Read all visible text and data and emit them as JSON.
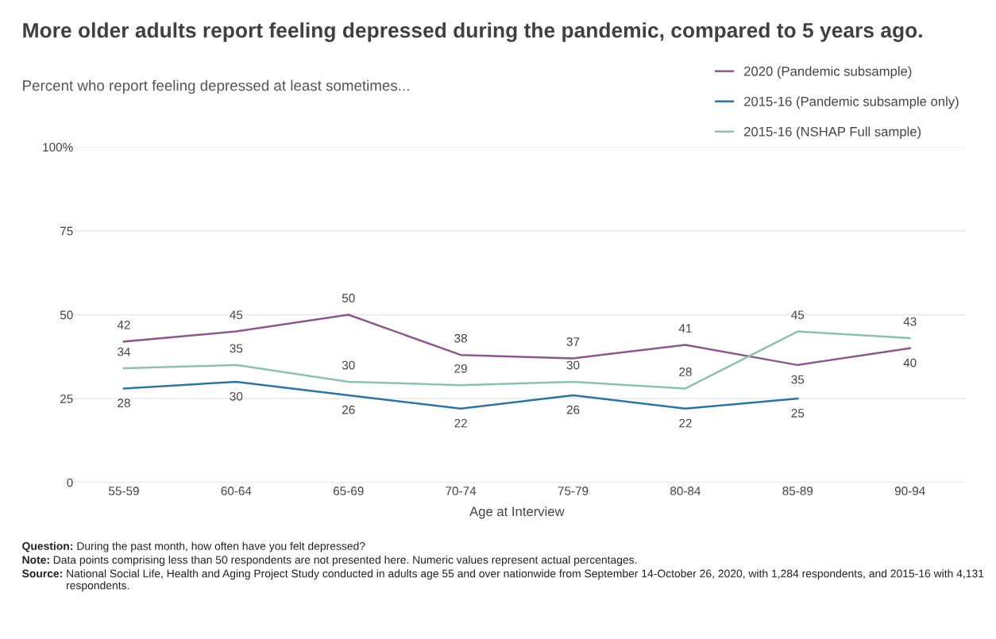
{
  "chart_data": {
    "type": "line",
    "title": "More older adults report feeling depressed during the pandemic, compared to 5 years ago.",
    "subtitle": "Percent who report feeling depressed at least sometimes...",
    "xlabel": "Age at Interview",
    "categories": [
      "55-59",
      "60-64",
      "65-69",
      "70-74",
      "75-79",
      "80-84",
      "85-89",
      "90-94"
    ],
    "series": [
      {
        "name": "2020 (Pandemic subsample)",
        "color": "#8b5a8c",
        "values": [
          42,
          45,
          50,
          38,
          37,
          41,
          35,
          40
        ]
      },
      {
        "name": "2015-16 (Pandemic subsample only)",
        "color": "#2f73a0",
        "values": [
          28,
          30,
          26,
          22,
          26,
          22,
          25,
          null
        ]
      },
      {
        "name": "2015-16 (NSHAP Full sample)",
        "color": "#8fc1aa",
        "values": [
          34,
          35,
          30,
          29,
          30,
          28,
          45,
          43
        ]
      }
    ],
    "ylim": [
      0,
      100
    ],
    "yticks": [
      0,
      25,
      50,
      75,
      {
        "value": 100,
        "label": "100%"
      }
    ],
    "grid": "y",
    "legend": "top right",
    "data_labels": true,
    "marker": "none",
    "line_style": "solid",
    "annotations": [
      "Question: During the past month, how often have you felt depressed?",
      "Note: Data points comprising less than 50 respondents are not presented here. Numeric values represent actual percentages.",
      "Source: National Social Life, Health and Aging Project Study conducted in adults age 55 and over nationwide from September 14-October 26, 2020, with 1,284 respondents, and 2015-16 with 4,131 respondents."
    ]
  }
}
